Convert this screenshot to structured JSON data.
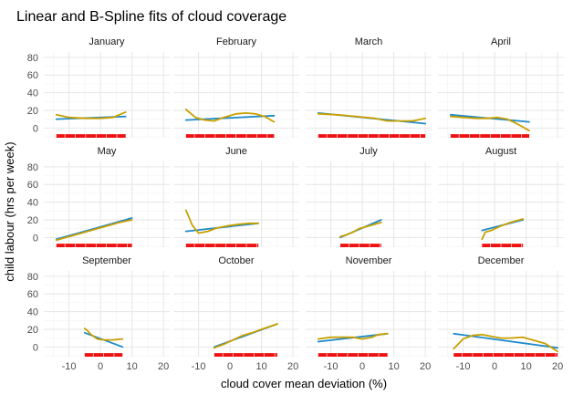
{
  "chart_data": {
    "type": "line",
    "title": "Linear and B-Spline fits of cloud coverage",
    "xlabel": "cloud cover mean deviation (%)",
    "ylabel": "child labour (hrs per week)",
    "xlim": [
      -18,
      22
    ],
    "ylim": [
      -11,
      86
    ],
    "x_ticks": [
      -10,
      0,
      10,
      20
    ],
    "y_ticks": [
      0,
      20,
      40,
      60,
      80
    ],
    "grid": true,
    "legend": "none",
    "colors": {
      "linear": "#1f8ac9",
      "spline": "#c8a000",
      "rug": "#ee1111"
    },
    "series_names": [
      "linear fit",
      "b-spline fit"
    ],
    "panels": [
      {
        "name": "January",
        "linear": [
          [
            -14,
            10
          ],
          [
            8,
            13
          ]
        ],
        "spline": [
          [
            -14,
            15
          ],
          [
            -10,
            12
          ],
          [
            -5,
            11
          ],
          [
            0,
            11
          ],
          [
            4,
            12
          ],
          [
            8,
            18
          ]
        ],
        "rug": [
          [
            -14,
            8
          ]
        ]
      },
      {
        "name": "February",
        "linear": [
          [
            -14,
            9
          ],
          [
            14,
            14
          ]
        ],
        "spline": [
          [
            -14,
            21
          ],
          [
            -11,
            12
          ],
          [
            -8,
            9
          ],
          [
            -5,
            8
          ],
          [
            -2,
            12
          ],
          [
            2,
            16
          ],
          [
            5,
            17
          ],
          [
            8,
            16
          ],
          [
            11,
            13
          ],
          [
            14,
            7
          ]
        ],
        "rug": [
          [
            -14,
            14
          ]
        ]
      },
      {
        "name": "March",
        "linear": [
          [
            -14,
            17
          ],
          [
            20,
            5
          ]
        ],
        "spline": [
          [
            -14,
            16
          ],
          [
            -8,
            15
          ],
          [
            -2,
            13
          ],
          [
            4,
            11
          ],
          [
            8,
            8
          ],
          [
            12,
            8
          ],
          [
            16,
            8
          ],
          [
            20,
            11
          ]
        ],
        "rug": [
          [
            -14,
            20
          ]
        ]
      },
      {
        "name": "April",
        "linear": [
          [
            -14,
            15
          ],
          [
            11,
            7
          ]
        ],
        "spline": [
          [
            -14,
            13
          ],
          [
            -10,
            12
          ],
          [
            -6,
            11
          ],
          [
            -2,
            11
          ],
          [
            1,
            12
          ],
          [
            4,
            10
          ],
          [
            7,
            5
          ],
          [
            11,
            -3
          ]
        ],
        "rug": [
          [
            -14,
            11
          ]
        ]
      },
      {
        "name": "May",
        "linear": [
          [
            -14,
            -2
          ],
          [
            10,
            22
          ]
        ],
        "spline": [
          [
            -14,
            -3
          ],
          [
            -10,
            1
          ],
          [
            -6,
            5
          ],
          [
            -2,
            9
          ],
          [
            2,
            13
          ],
          [
            6,
            17
          ],
          [
            10,
            20
          ]
        ],
        "rug": [
          [
            -14,
            10
          ]
        ]
      },
      {
        "name": "June",
        "linear": [
          [
            -14,
            7
          ],
          [
            9,
            16
          ]
        ],
        "spline": [
          [
            -14,
            31
          ],
          [
            -12,
            14
          ],
          [
            -10,
            5
          ],
          [
            -7,
            7
          ],
          [
            -4,
            11
          ],
          [
            -1,
            13
          ],
          [
            3,
            15
          ],
          [
            6,
            16
          ],
          [
            9,
            16
          ]
        ],
        "rug": [
          [
            -14,
            9
          ]
        ]
      },
      {
        "name": "July",
        "linear": [
          [
            -7,
            0
          ],
          [
            6,
            20
          ]
        ],
        "spline": [
          [
            -7,
            1
          ],
          [
            -5,
            3
          ],
          [
            -3,
            6
          ],
          [
            -1,
            10
          ],
          [
            1,
            12
          ],
          [
            3,
            14
          ],
          [
            6,
            17
          ]
        ],
        "rug": [
          [
            -7,
            6
          ]
        ]
      },
      {
        "name": "August",
        "linear": [
          [
            -4,
            8
          ],
          [
            9,
            20
          ]
        ],
        "spline": [
          [
            -4,
            -2
          ],
          [
            -3,
            6
          ],
          [
            -1,
            8
          ],
          [
            2,
            13
          ],
          [
            5,
            17
          ],
          [
            9,
            21
          ]
        ],
        "rug": [
          [
            -4,
            9
          ]
        ]
      },
      {
        "name": "September",
        "linear": [
          [
            -5,
            16
          ],
          [
            7,
            0
          ]
        ],
        "spline": [
          [
            -5,
            21
          ],
          [
            -4,
            18
          ],
          [
            -3,
            14
          ],
          [
            -1,
            9
          ],
          [
            1,
            8
          ],
          [
            4,
            8
          ],
          [
            7,
            9
          ]
        ],
        "rug": [
          [
            -5,
            7
          ]
        ]
      },
      {
        "name": "October",
        "linear": [
          [
            -5,
            0
          ],
          [
            15,
            26
          ]
        ],
        "spline": [
          [
            -5,
            -1
          ],
          [
            -2,
            3
          ],
          [
            1,
            8
          ],
          [
            4,
            13
          ],
          [
            7,
            16
          ],
          [
            10,
            20
          ],
          [
            15,
            26
          ]
        ],
        "rug": [
          [
            -5,
            15
          ]
        ]
      },
      {
        "name": "November",
        "linear": [
          [
            -14,
            6
          ],
          [
            8,
            15
          ]
        ],
        "spline": [
          [
            -14,
            9
          ],
          [
            -10,
            11
          ],
          [
            -6,
            11
          ],
          [
            -3,
            11
          ],
          [
            0,
            9
          ],
          [
            3,
            11
          ],
          [
            5,
            14
          ],
          [
            8,
            15
          ]
        ],
        "rug": [
          [
            -14,
            8
          ]
        ]
      },
      {
        "name": "December",
        "linear": [
          [
            -13,
            15
          ],
          [
            20,
            -1
          ]
        ],
        "spline": [
          [
            -13,
            -2
          ],
          [
            -10,
            9
          ],
          [
            -7,
            13
          ],
          [
            -4,
            14
          ],
          [
            -1,
            12
          ],
          [
            2,
            10
          ],
          [
            5,
            10
          ],
          [
            9,
            11
          ],
          [
            12,
            8
          ],
          [
            16,
            4
          ],
          [
            20,
            -5
          ]
        ],
        "rug": [
          [
            -13,
            20
          ]
        ]
      }
    ]
  }
}
